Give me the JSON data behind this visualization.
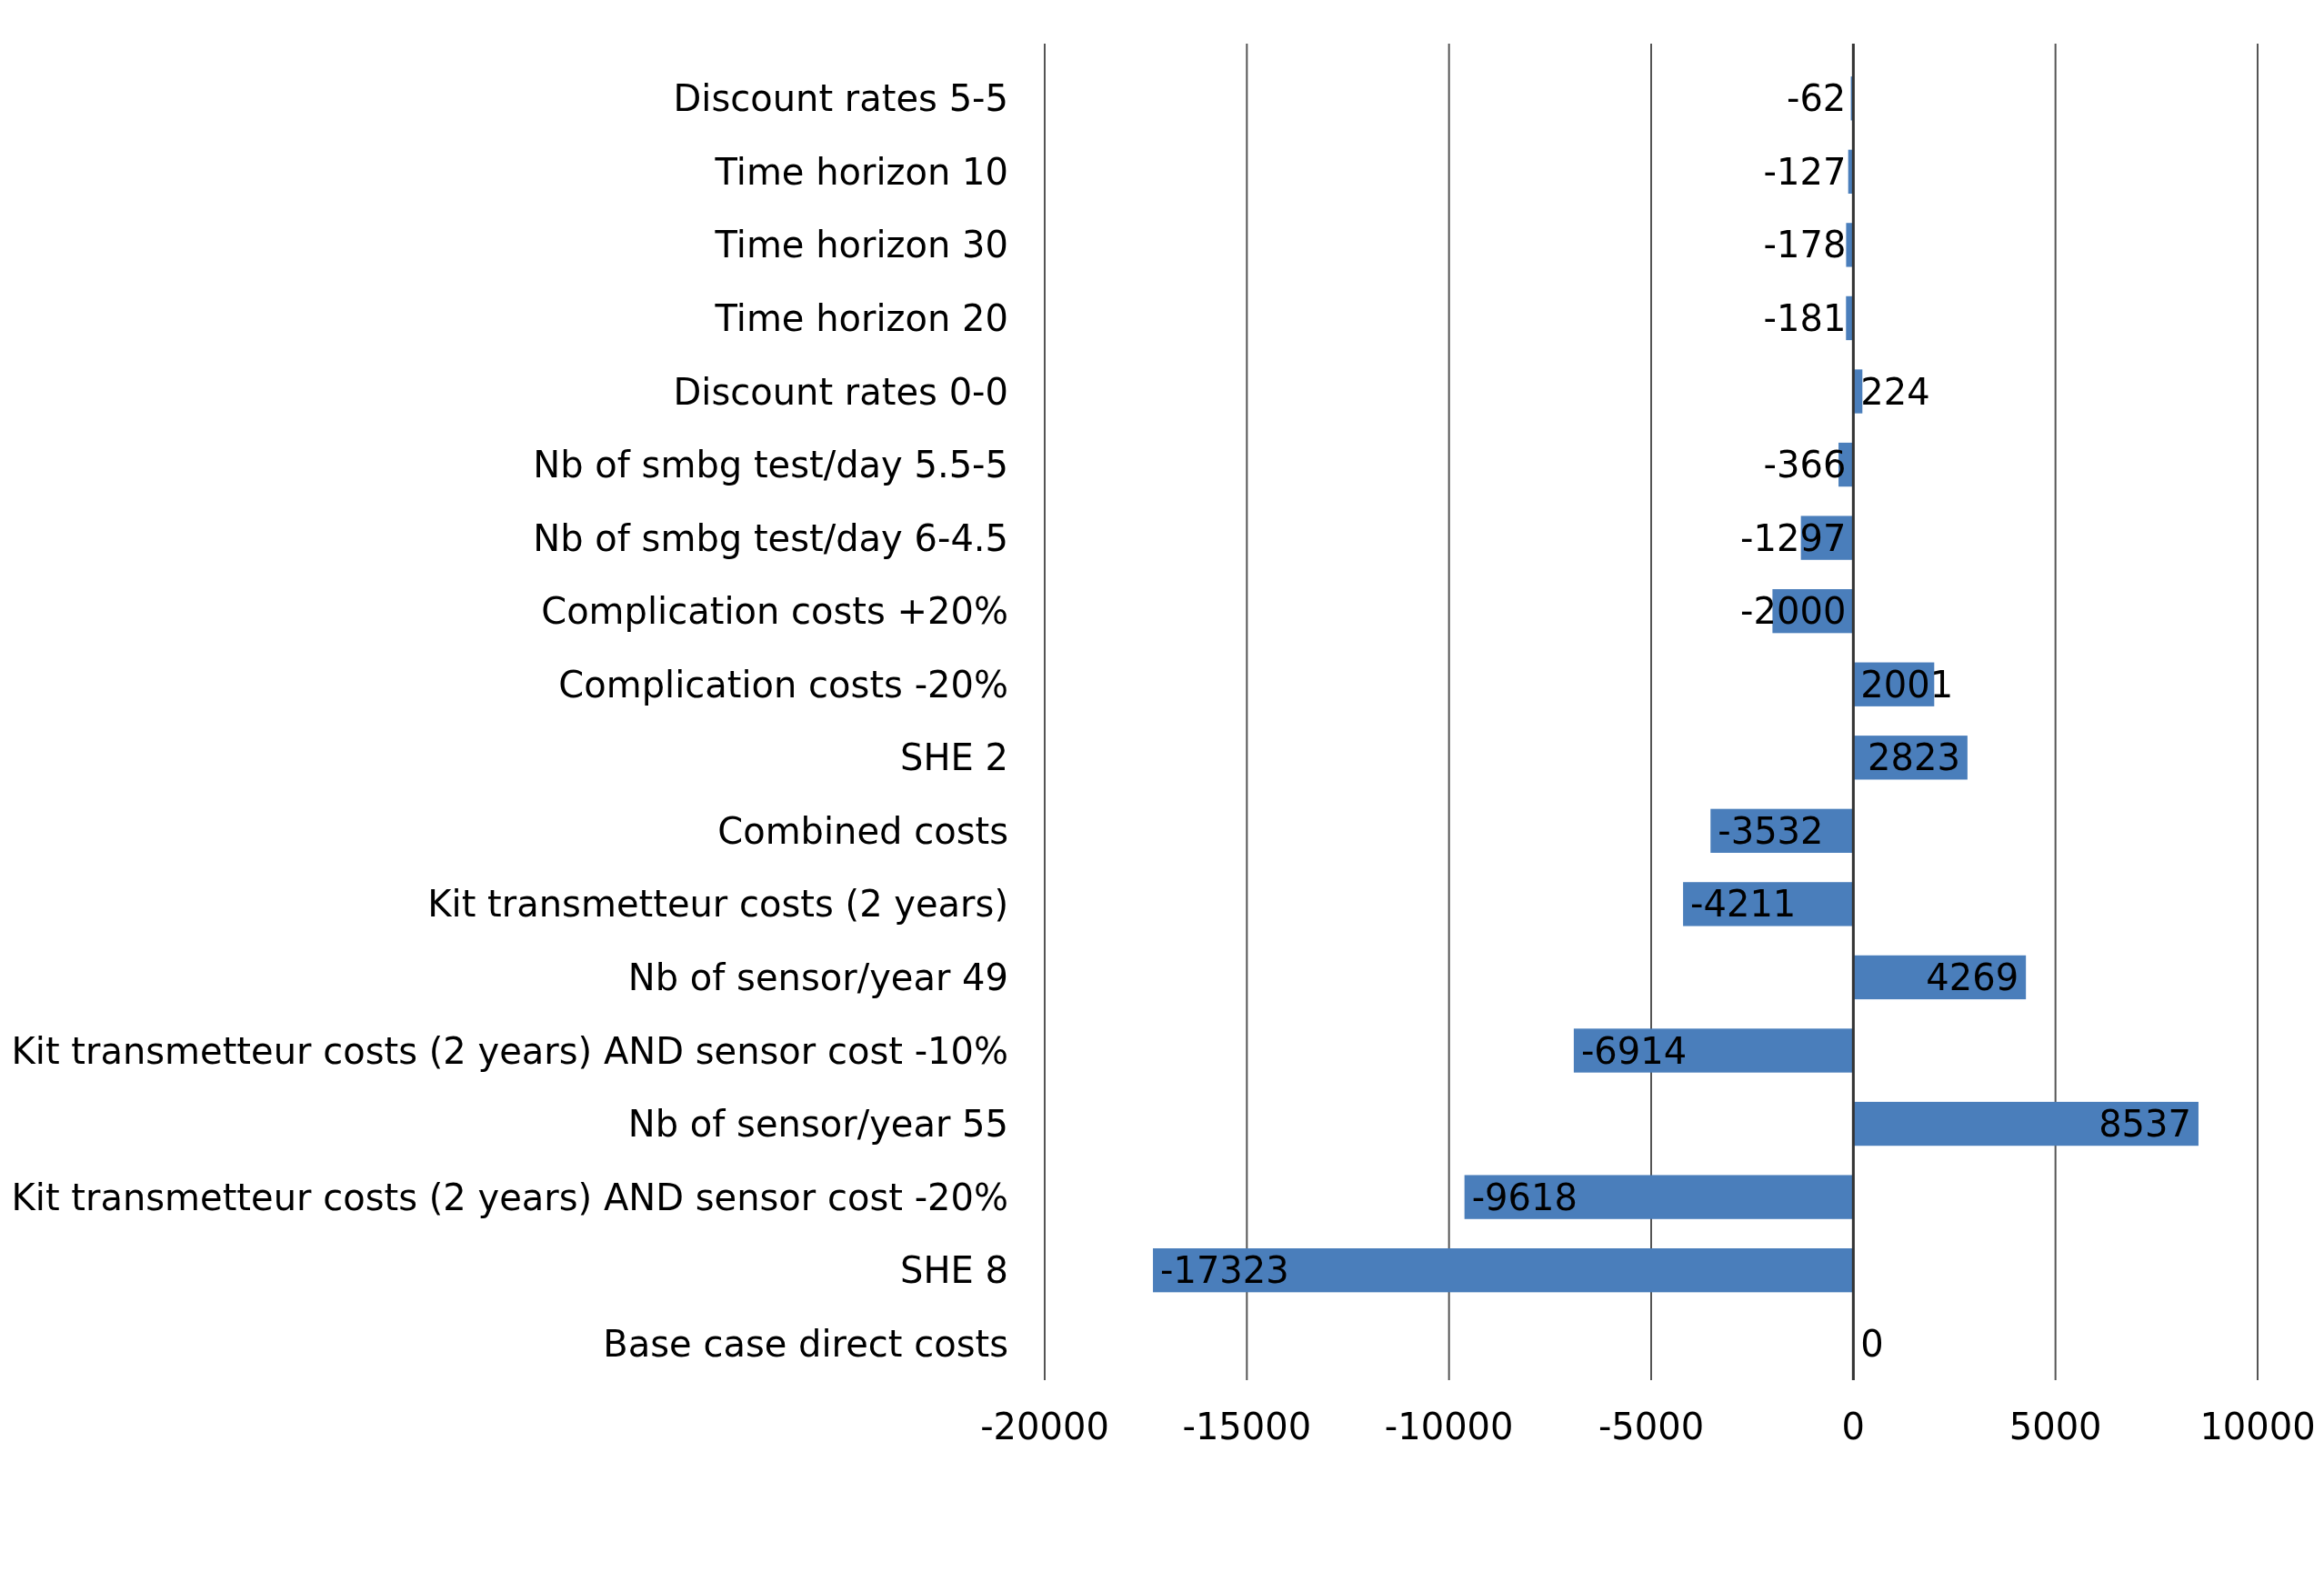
{
  "chart_data": {
    "type": "bar",
    "orientation": "horizontal",
    "categories": [
      "Discount rates 5-5",
      "Time horizon 10",
      "Time horizon 30",
      "Time horizon 20",
      "Discount rates 0-0",
      "Nb of smbg test/day 5.5-5",
      "Nb of smbg test/day 6-4.5",
      "Complication costs +20%",
      "Complication costs -20%",
      "SHE 2",
      "Combined costs",
      "Kit transmetteur costs (2 years)",
      "Nb of sensor/year 49",
      "Kit transmetteur costs (2 years) AND sensor cost -10%",
      "Nb of sensor/year 55",
      "Kit transmetteur costs (2 years) AND sensor cost -20%",
      "SHE 8",
      "Base case direct costs"
    ],
    "values": [
      -62,
      -127,
      -178,
      -181,
      224,
      -366,
      -1297,
      -2000,
      2001,
      2823,
      -3532,
      -4211,
      4269,
      -6914,
      8537,
      -9618,
      -17323,
      0
    ],
    "color": "#4a7ebb",
    "data_labels": true,
    "grid": "x",
    "xlim": [
      -20000,
      10000
    ],
    "xticks": [
      -20000,
      -15000,
      -10000,
      -5000,
      0,
      5000,
      10000
    ]
  }
}
